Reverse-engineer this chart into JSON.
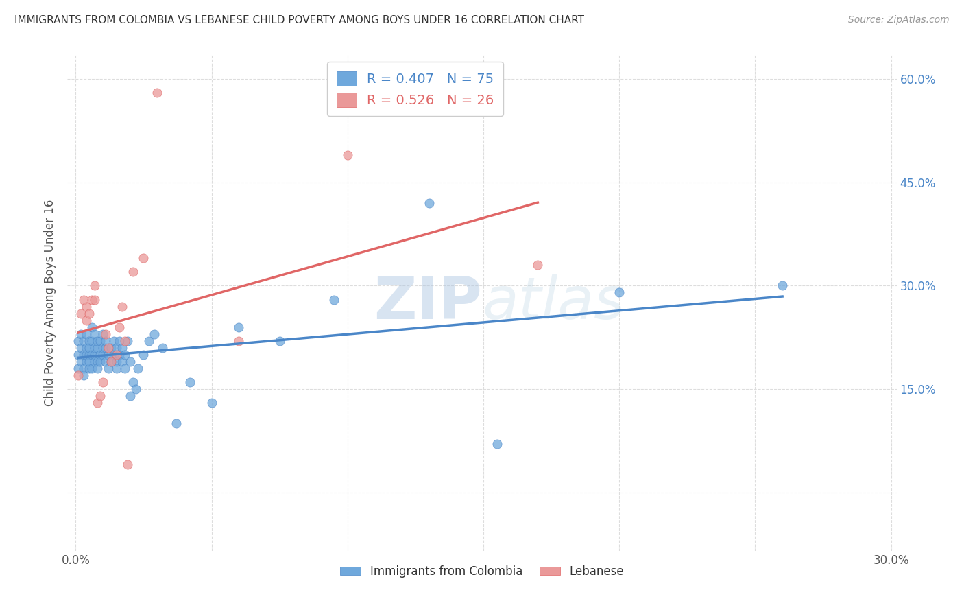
{
  "title": "IMMIGRANTS FROM COLOMBIA VS LEBANESE CHILD POVERTY AMONG BOYS UNDER 16 CORRELATION CHART",
  "source": "Source: ZipAtlas.com",
  "ylabel": "Child Poverty Among Boys Under 16",
  "xlim": [
    -0.003,
    0.302
  ],
  "ylim": [
    -0.085,
    0.635
  ],
  "xticks": [
    0.0,
    0.05,
    0.1,
    0.15,
    0.2,
    0.25,
    0.3
  ],
  "xticklabels": [
    "0.0%",
    "",
    "",
    "",
    "",
    "",
    "30.0%"
  ],
  "yticks_right": [
    0.15,
    0.3,
    0.45,
    0.6
  ],
  "yticklabels_right": [
    "15.0%",
    "30.0%",
    "45.0%",
    "60.0%"
  ],
  "color_colombia": "#6fa8dc",
  "color_lebanese": "#ea9999",
  "color_colombia_line": "#4a86c8",
  "color_lebanese_line": "#e06666",
  "R_colombia": 0.407,
  "N_colombia": 75,
  "R_lebanese": 0.526,
  "N_lebanese": 26,
  "watermark": "ZIPatlas",
  "colombia_x": [
    0.001,
    0.001,
    0.001,
    0.002,
    0.002,
    0.002,
    0.003,
    0.003,
    0.003,
    0.003,
    0.004,
    0.004,
    0.004,
    0.004,
    0.005,
    0.005,
    0.005,
    0.005,
    0.005,
    0.006,
    0.006,
    0.006,
    0.006,
    0.007,
    0.007,
    0.007,
    0.007,
    0.008,
    0.008,
    0.008,
    0.008,
    0.009,
    0.009,
    0.009,
    0.01,
    0.01,
    0.01,
    0.011,
    0.011,
    0.011,
    0.012,
    0.012,
    0.013,
    0.013,
    0.014,
    0.014,
    0.015,
    0.015,
    0.015,
    0.016,
    0.016,
    0.017,
    0.017,
    0.018,
    0.018,
    0.019,
    0.02,
    0.02,
    0.021,
    0.022,
    0.023,
    0.025,
    0.027,
    0.029,
    0.032,
    0.037,
    0.042,
    0.05,
    0.06,
    0.075,
    0.095,
    0.13,
    0.155,
    0.2,
    0.26
  ],
  "colombia_y": [
    0.2,
    0.18,
    0.22,
    0.19,
    0.21,
    0.23,
    0.2,
    0.18,
    0.22,
    0.17,
    0.21,
    0.23,
    0.19,
    0.2,
    0.2,
    0.22,
    0.18,
    0.21,
    0.19,
    0.2,
    0.22,
    0.18,
    0.24,
    0.2,
    0.19,
    0.21,
    0.23,
    0.19,
    0.21,
    0.22,
    0.18,
    0.2,
    0.22,
    0.19,
    0.2,
    0.21,
    0.23,
    0.19,
    0.21,
    0.22,
    0.18,
    0.2,
    0.19,
    0.21,
    0.2,
    0.22,
    0.19,
    0.21,
    0.18,
    0.2,
    0.22,
    0.19,
    0.21,
    0.18,
    0.2,
    0.22,
    0.19,
    0.14,
    0.16,
    0.15,
    0.18,
    0.2,
    0.22,
    0.23,
    0.21,
    0.1,
    0.16,
    0.13,
    0.24,
    0.22,
    0.28,
    0.42,
    0.07,
    0.29,
    0.3
  ],
  "lebanese_x": [
    0.001,
    0.002,
    0.003,
    0.004,
    0.004,
    0.005,
    0.006,
    0.007,
    0.007,
    0.008,
    0.009,
    0.01,
    0.011,
    0.012,
    0.013,
    0.015,
    0.016,
    0.017,
    0.018,
    0.019,
    0.021,
    0.025,
    0.03,
    0.06,
    0.1,
    0.17
  ],
  "lebanese_y": [
    0.17,
    0.26,
    0.28,
    0.25,
    0.27,
    0.26,
    0.28,
    0.3,
    0.28,
    0.13,
    0.14,
    0.16,
    0.23,
    0.21,
    0.19,
    0.2,
    0.24,
    0.27,
    0.22,
    0.04,
    0.32,
    0.34,
    0.58,
    0.22,
    0.49,
    0.33
  ],
  "grid_color": "#dddddd",
  "bg_color": "#ffffff",
  "tick_color": "#555555"
}
